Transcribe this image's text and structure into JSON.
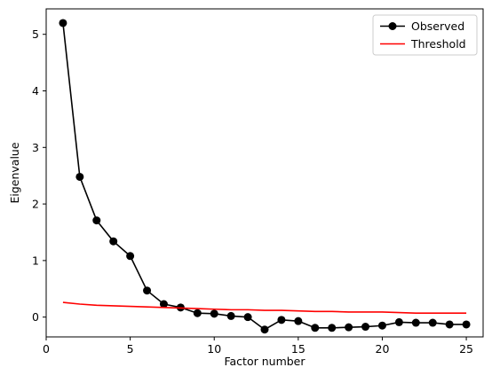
{
  "chart_data": {
    "type": "line",
    "xlabel": "Factor number",
    "ylabel": "Eigenvalue",
    "xlim": [
      0,
      26
    ],
    "ylim": [
      -0.35,
      5.45
    ],
    "xticks": [
      0,
      5,
      10,
      15,
      20,
      25
    ],
    "yticks": [
      0,
      1,
      2,
      3,
      4,
      5
    ],
    "grid": false,
    "legend_position": "top-right",
    "x": [
      1,
      2,
      3,
      4,
      5,
      6,
      7,
      8,
      9,
      10,
      11,
      12,
      13,
      14,
      15,
      16,
      17,
      18,
      19,
      20,
      21,
      22,
      23,
      24,
      25
    ],
    "series": [
      {
        "name": "Observed",
        "color": "#000000",
        "marker": "circle",
        "values": [
          5.2,
          2.48,
          1.71,
          1.34,
          1.08,
          0.47,
          0.23,
          0.17,
          0.07,
          0.06,
          0.02,
          0.0,
          -0.22,
          -0.05,
          -0.07,
          -0.19,
          -0.19,
          -0.18,
          -0.17,
          -0.15,
          -0.09,
          -0.1,
          -0.1,
          -0.13,
          -0.13
        ]
      },
      {
        "name": "Threshold",
        "color": "#ff0000",
        "marker": "none",
        "values": [
          0.26,
          0.23,
          0.21,
          0.2,
          0.19,
          0.18,
          0.17,
          0.16,
          0.15,
          0.14,
          0.13,
          0.13,
          0.12,
          0.12,
          0.11,
          0.1,
          0.1,
          0.09,
          0.09,
          0.09,
          0.08,
          0.07,
          0.07,
          0.07,
          0.07
        ]
      }
    ]
  }
}
